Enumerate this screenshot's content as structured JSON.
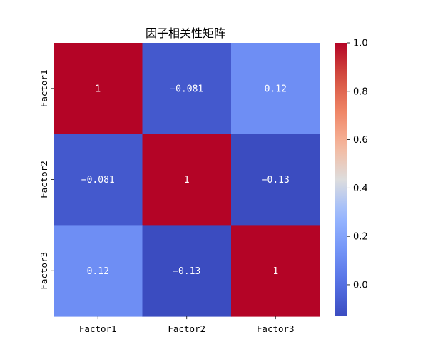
{
  "chart_data": {
    "type": "heatmap",
    "title": "因子相关性矩阵",
    "row_labels": [
      "Factor1",
      "Factor2",
      "Factor3"
    ],
    "col_labels": [
      "Factor1",
      "Factor2",
      "Factor3"
    ],
    "values": [
      [
        1,
        -0.081,
        0.12
      ],
      [
        -0.081,
        1,
        -0.13
      ],
      [
        0.12,
        -0.13,
        1
      ]
    ],
    "cell_labels": [
      [
        "1",
        "−0.081",
        "0.12"
      ],
      [
        "−0.081",
        "1",
        "−0.13"
      ],
      [
        "0.12",
        "−0.13",
        "1"
      ]
    ],
    "colormap": "coolwarm",
    "color_range": [
      -0.13,
      1.0
    ],
    "colorbar_ticks": [
      0.0,
      0.2,
      0.4,
      0.6,
      0.8,
      1.0
    ],
    "colorbar_tick_labels": [
      "0.0",
      "0.2",
      "0.4",
      "0.6",
      "0.8",
      "1.0"
    ],
    "colorbar_placement": "right",
    "grid": false
  }
}
